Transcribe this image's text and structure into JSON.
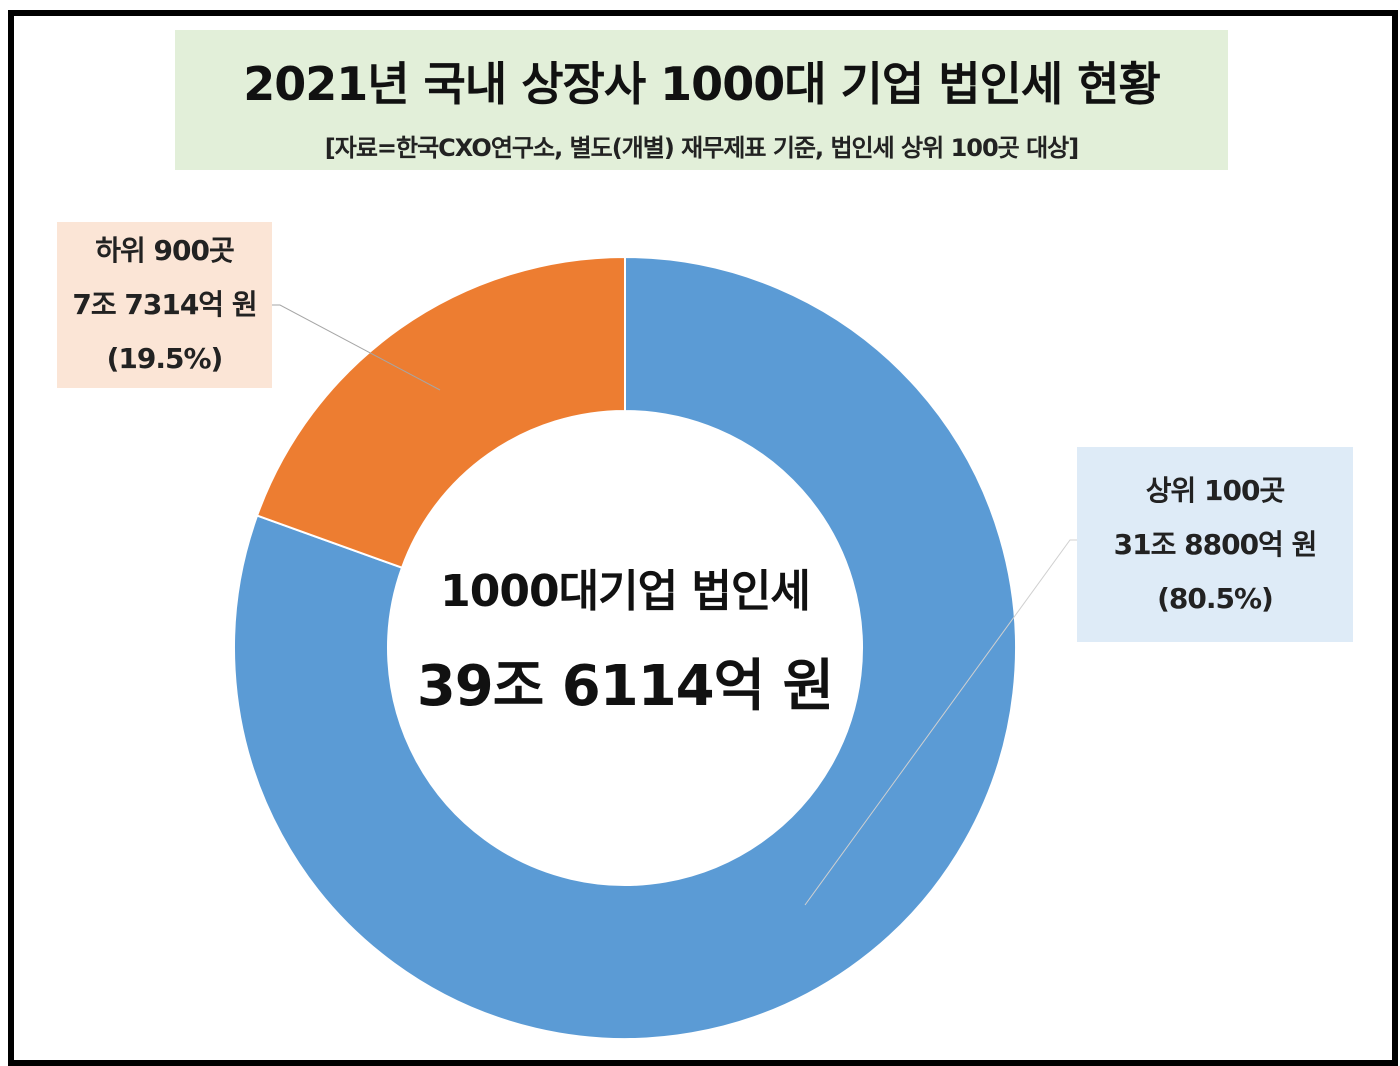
{
  "chart_data": {
    "type": "pie",
    "variant": "donut",
    "title": "2021년 국내 상장사 1000대 기업 법인세 현황",
    "subtitle": "[자료=한국CXO연구소, 별도(개별) 재무제표 기준, 법인세 상위 100곳 대상]",
    "center_label": {
      "line1": "1000대기업 법인세",
      "line2": "39조 6114억 원"
    },
    "slices": [
      {
        "name": "상위 100곳",
        "value_label": "31조 8800억 원",
        "percent_label": "(80.5%)",
        "value": 80.5,
        "color": "#5b9bd5",
        "label_bg": "#deebf7"
      },
      {
        "name": "하위 900곳",
        "value_label": "7조 7314억 원",
        "percent_label": "(19.5%)",
        "value": 19.5,
        "color": "#ed7d31",
        "label_bg": "#fbe5d6"
      }
    ],
    "title_bg": "#e2efd9"
  }
}
